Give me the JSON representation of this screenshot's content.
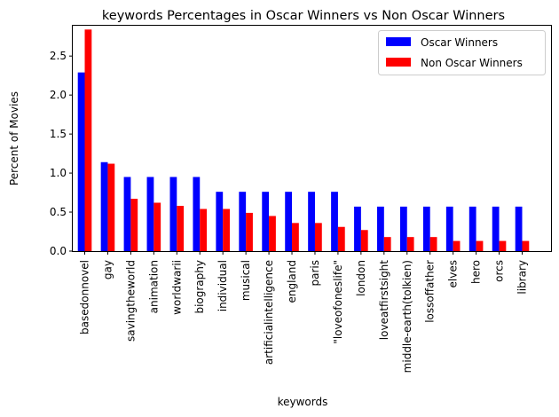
{
  "chart_data": {
    "type": "bar",
    "title": "keywords Percentages in Oscar Winners vs Non Oscar Winners",
    "xlabel": "keywords",
    "ylabel": "Percent of Movies",
    "ylim": [
      0,
      2.9
    ],
    "yticks": [
      0.0,
      0.5,
      1.0,
      1.5,
      2.0,
      2.5
    ],
    "ytick_labels": [
      "0.0",
      "0.5",
      "1.0",
      "1.5",
      "2.0",
      "2.5"
    ],
    "grid": false,
    "legend_position": "top-right",
    "categories": [
      "basedonnovel",
      "gay",
      "savingtheworld",
      "animation",
      "worldwarii",
      "biography",
      "individual",
      "musical",
      "artificialintelligence",
      "england",
      "paris",
      "\"loveofoneslife\"",
      "london",
      "loveatfirstsight",
      "middle-earth(tolkien)",
      "lossoffather",
      "elves",
      "hero",
      "orcs",
      "library"
    ],
    "series": [
      {
        "name": "Oscar Winners",
        "color": "#0000ff",
        "values": [
          2.29,
          1.14,
          0.95,
          0.95,
          0.95,
          0.95,
          0.76,
          0.76,
          0.76,
          0.76,
          0.76,
          0.76,
          0.57,
          0.57,
          0.57,
          0.57,
          0.57,
          0.57,
          0.57,
          0.57
        ]
      },
      {
        "name": "Non Oscar Winners",
        "color": "#ff0000",
        "values": [
          2.84,
          1.12,
          0.67,
          0.62,
          0.58,
          0.54,
          0.54,
          0.49,
          0.45,
          0.36,
          0.36,
          0.31,
          0.27,
          0.18,
          0.18,
          0.18,
          0.13,
          0.13,
          0.13,
          0.13
        ]
      }
    ]
  }
}
